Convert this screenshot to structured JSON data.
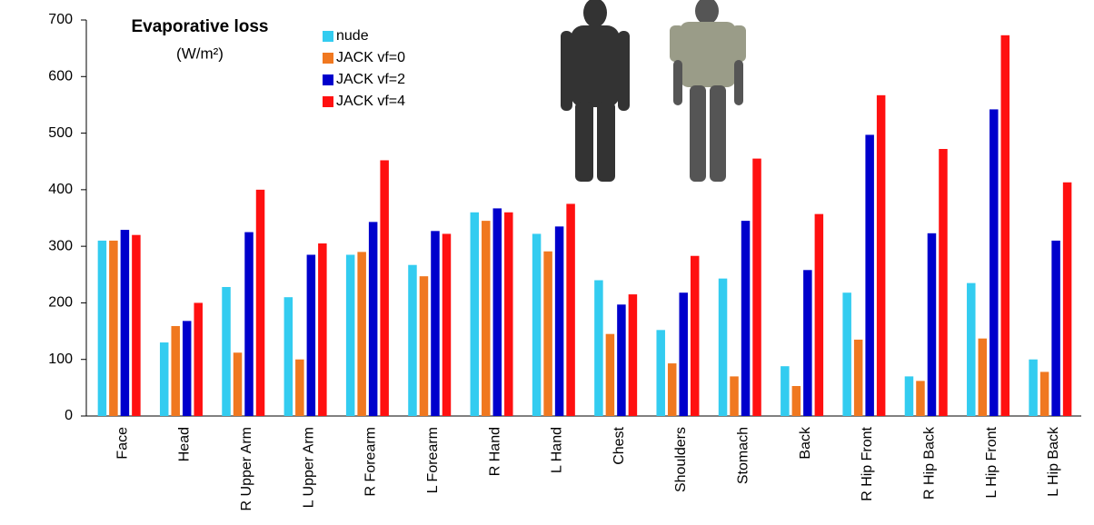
{
  "chart_data": {
    "type": "bar",
    "title": "Evaporative loss",
    "subtitle": "(W/m²)",
    "categories": [
      "Face",
      "Head",
      "R Upper Arm",
      "L Upper Arm",
      "R Forearm",
      "L Forearm",
      "R Hand",
      "L Hand",
      "Chest",
      "Shoulders",
      "Stomach",
      "Back",
      "R Hip Front",
      "R Hip Back",
      "L Hip Front",
      "L Hip Back"
    ],
    "series": [
      {
        "name": "nude",
        "color": "#33ccf0",
        "values": [
          310,
          130,
          228,
          210,
          285,
          267,
          360,
          322,
          240,
          152,
          243,
          88,
          218,
          70,
          235,
          100
        ]
      },
      {
        "name": "JACK vf=0",
        "color": "#f07820",
        "values": [
          310,
          159,
          112,
          100,
          290,
          247,
          345,
          291,
          145,
          93,
          70,
          53,
          135,
          62,
          137,
          78
        ]
      },
      {
        "name": "JACK vf=2",
        "color": "#0000cc",
        "values": [
          329,
          168,
          325,
          285,
          343,
          327,
          367,
          335,
          197,
          218,
          345,
          258,
          497,
          323,
          542,
          310
        ]
      },
      {
        "name": "JACK vf=4",
        "color": "#ff1010",
        "values": [
          320,
          200,
          400,
          305,
          452,
          322,
          360,
          375,
          215,
          283,
          455,
          357,
          567,
          472,
          673,
          413
        ]
      }
    ],
    "ylim": [
      0,
      700
    ],
    "yticks": [
      0,
      100,
      200,
      300,
      400,
      500,
      600,
      700
    ]
  }
}
